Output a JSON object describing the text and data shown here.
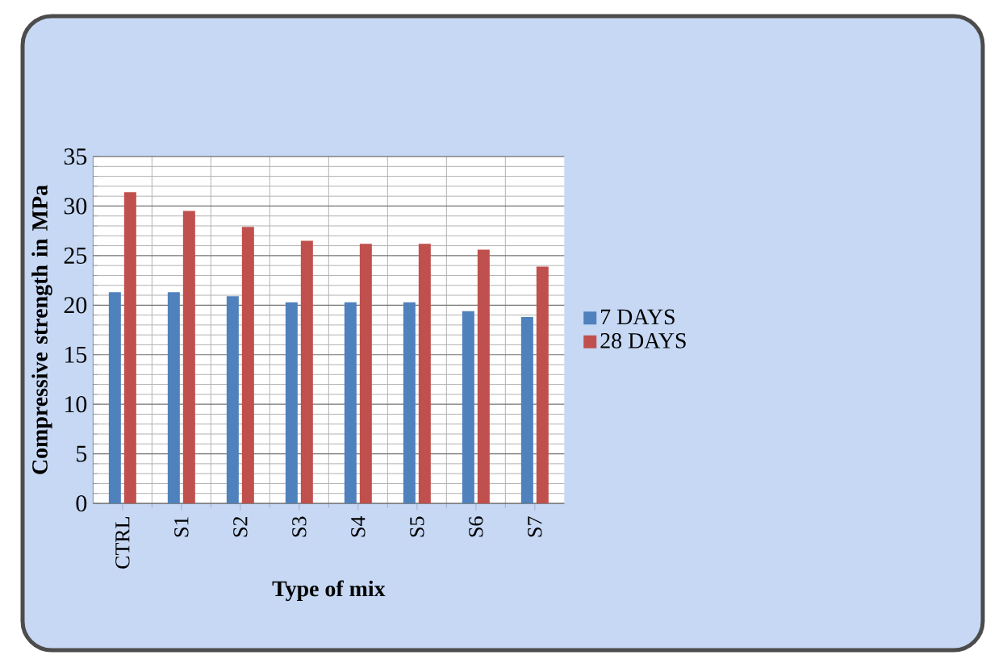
{
  "chart_data": {
    "type": "bar",
    "xlabel": "Type of mix",
    "ylabel": "Compressive strength in MPa",
    "categories": [
      "CTRL",
      "S1",
      "S2",
      "S3",
      "S4",
      "S5",
      "S6",
      "S7"
    ],
    "series": [
      {
        "name": "7 DAYS",
        "color": "#4f81bd",
        "values": [
          21.3,
          21.3,
          20.9,
          20.3,
          20.3,
          20.3,
          19.4,
          18.8
        ]
      },
      {
        "name": "28 DAYS",
        "color": "#c0504d",
        "values": [
          31.4,
          29.5,
          27.9,
          26.5,
          26.2,
          26.2,
          25.6,
          23.9
        ]
      }
    ],
    "ylim": [
      0,
      35
    ],
    "yticks": [
      0,
      5,
      10,
      15,
      20,
      25,
      30,
      35
    ],
    "grid": true,
    "legend": "right"
  }
}
